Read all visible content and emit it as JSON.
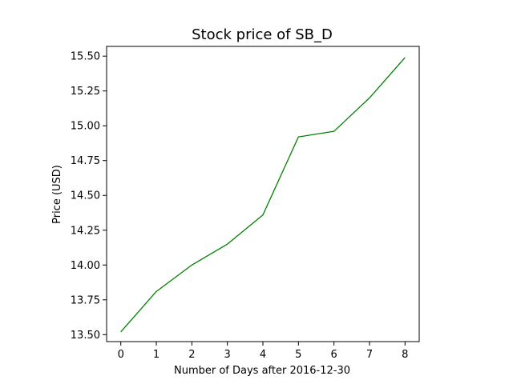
{
  "chart_data": {
    "type": "line",
    "title": "Stock price of SB_D",
    "xlabel": "Number of Days after 2016-12-30",
    "ylabel": "Price (USD)",
    "x": [
      0,
      1,
      2,
      3,
      4,
      5,
      6,
      7,
      8
    ],
    "series": [
      {
        "values": [
          13.52,
          13.81,
          14.0,
          14.15,
          14.36,
          14.92,
          14.96,
          15.2,
          15.49
        ],
        "color": "#008000"
      }
    ],
    "xlim": [
      -0.4,
      8.4
    ],
    "ylim": [
      13.45,
      15.57
    ],
    "xticks": [
      0,
      1,
      2,
      3,
      4,
      5,
      6,
      7,
      8
    ],
    "xtick_labels": [
      "0",
      "1",
      "2",
      "3",
      "4",
      "5",
      "6",
      "7",
      "8"
    ],
    "yticks": [
      13.5,
      13.75,
      14.0,
      14.25,
      14.5,
      14.75,
      15.0,
      15.25,
      15.5
    ],
    "ytick_labels": [
      "13.50",
      "13.75",
      "14.00",
      "14.25",
      "14.50",
      "14.75",
      "15.00",
      "15.25",
      "15.50"
    ],
    "grid": false,
    "legend": false
  }
}
